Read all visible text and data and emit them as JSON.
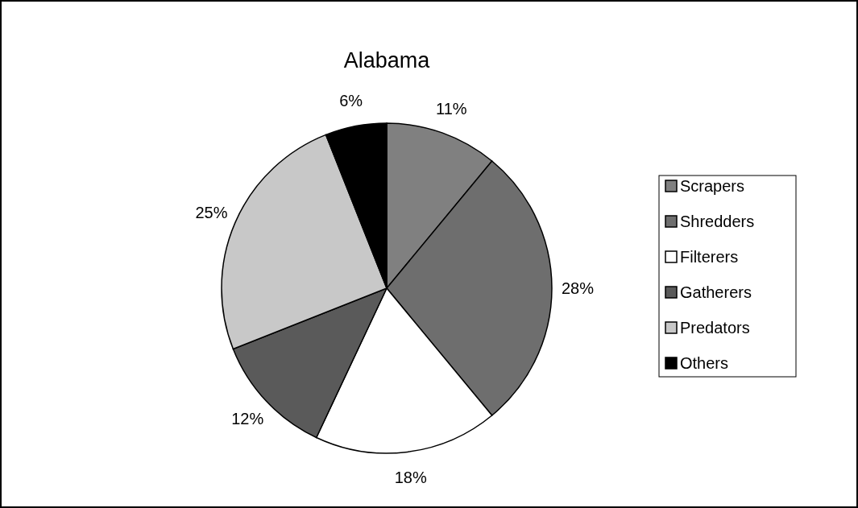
{
  "chart_data": {
    "type": "pie",
    "title": "Alabama",
    "categories": [
      "Scrapers",
      "Shredders",
      "Filterers",
      "Gatherers",
      "Predators",
      "Others"
    ],
    "values": [
      11,
      28,
      18,
      12,
      25,
      6
    ],
    "value_labels": [
      "11%",
      "28%",
      "18%",
      "12%",
      "25%",
      "6%"
    ],
    "colors": [
      "#808080",
      "#6e6e6e",
      "#ffffff",
      "#5a5a5a",
      "#c8c8c8",
      "#000000"
    ],
    "legend": "right"
  }
}
